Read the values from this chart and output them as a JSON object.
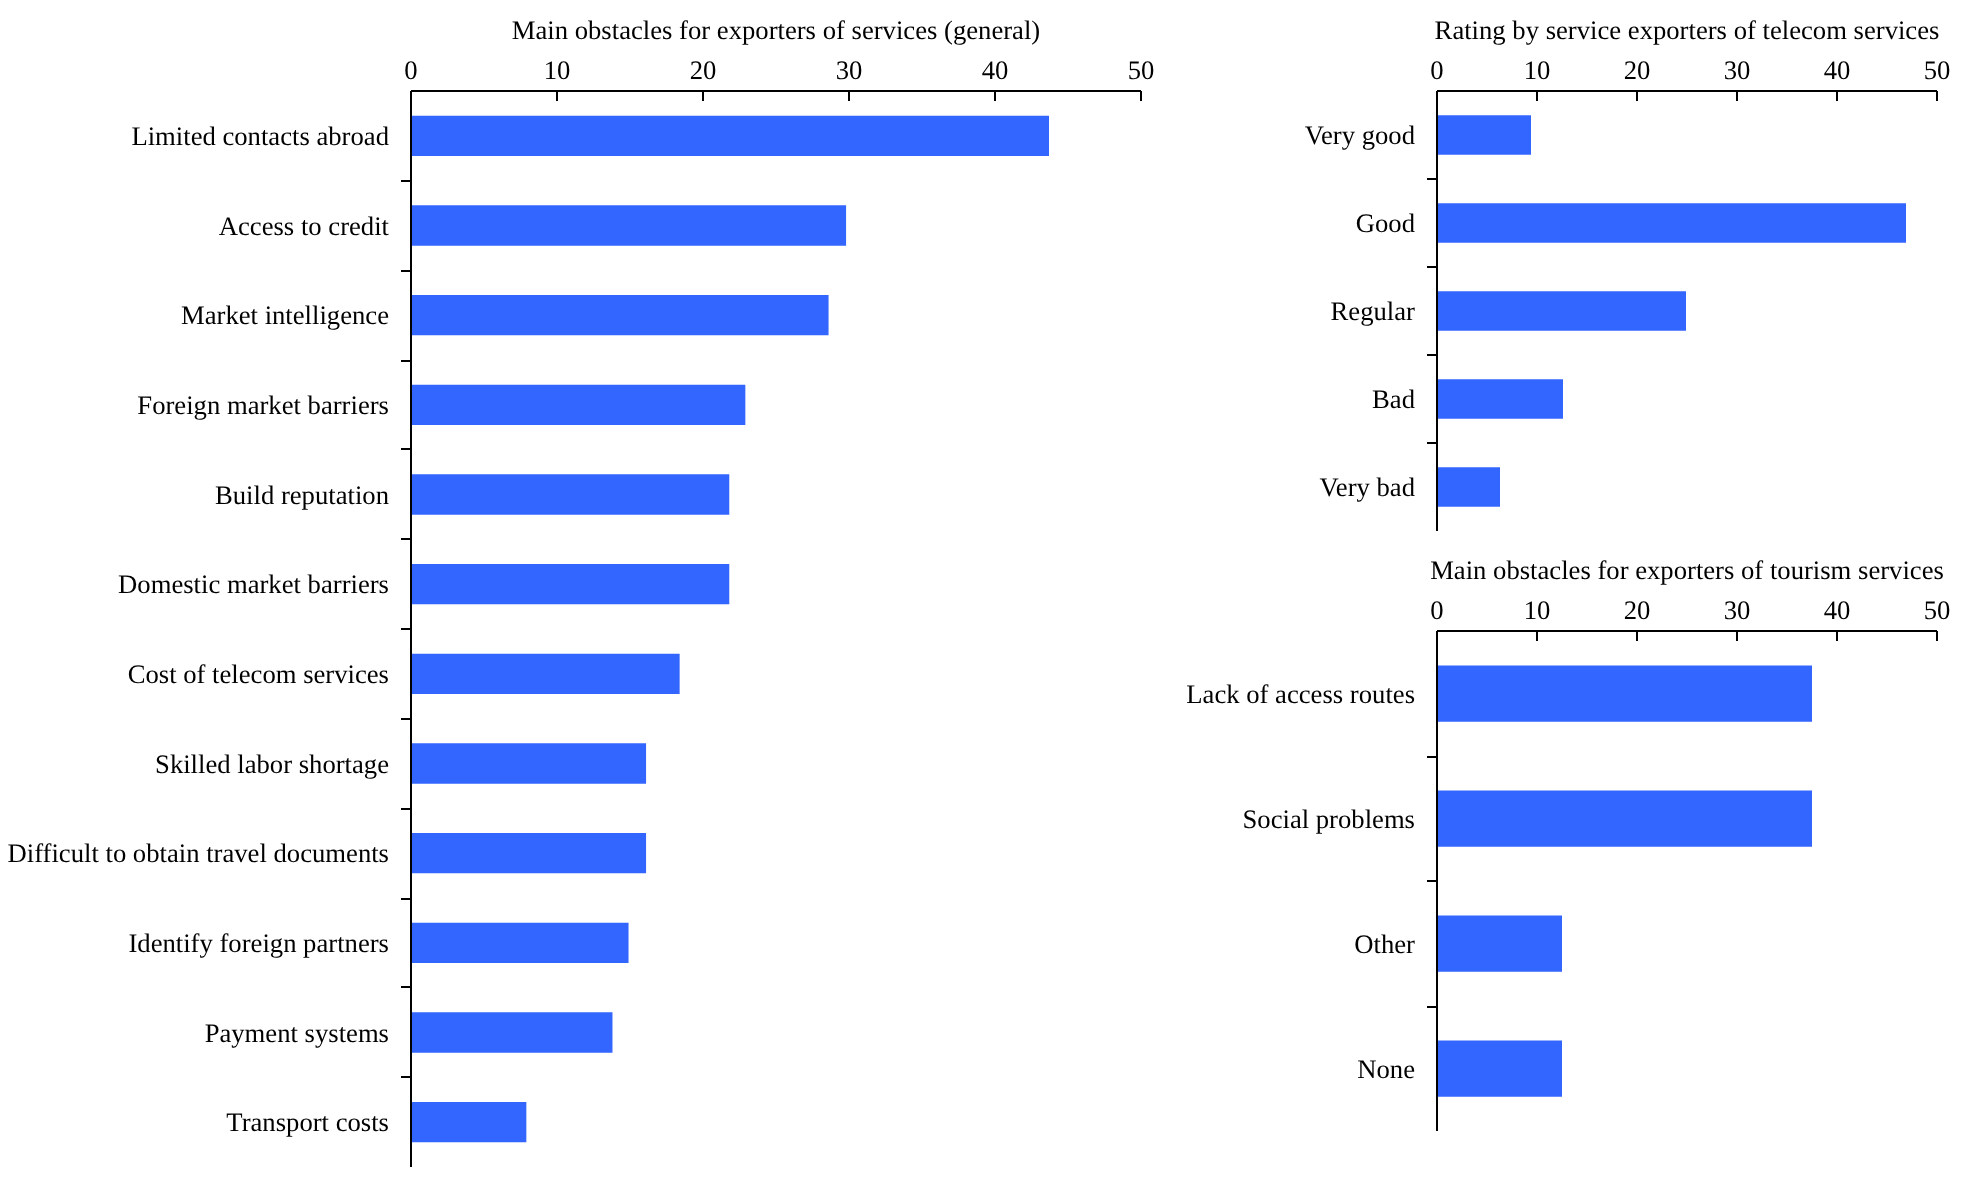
{
  "chart_data": [
    {
      "type": "bar",
      "orientation": "horizontal",
      "title": "Main obstacles for exporters of services (general)",
      "categories": [
        "Limited contacts abroad",
        "Access to credit",
        "Market intelligence",
        "Foreign market barriers",
        "Build reputation",
        "Domestic market barriers",
        "Cost of telecom services",
        "Skilled labor shortage",
        "Difficult to obtain travel documents",
        "Identify foreign partners",
        "Payment systems",
        "Transport costs"
      ],
      "values": [
        43.7,
        29.8,
        28.6,
        22.9,
        21.8,
        21.8,
        18.4,
        16.1,
        16.1,
        14.9,
        13.8,
        7.9
      ],
      "color": "#3366ff",
      "xlim": [
        0,
        50
      ],
      "xticks": [
        0,
        10,
        20,
        30,
        40,
        50
      ],
      "grid": false
    },
    {
      "type": "bar",
      "orientation": "horizontal",
      "title": "Rating by service exporters of telecom services",
      "categories": [
        "Very good",
        "Good",
        "Regular",
        "Bad",
        "Very bad"
      ],
      "values": [
        9.4,
        46.9,
        24.9,
        12.6,
        6.3
      ],
      "color": "#3366ff",
      "xlim": [
        0,
        50
      ],
      "xticks": [
        0,
        10,
        20,
        30,
        40,
        50
      ],
      "grid": false
    },
    {
      "type": "bar",
      "orientation": "horizontal",
      "title": "Main obstacles for exporters of tourism services",
      "categories": [
        "Lack of access routes",
        "Social problems",
        "Other",
        "None"
      ],
      "values": [
        37.5,
        37.5,
        12.5,
        12.5
      ],
      "color": "#3366ff",
      "xlim": [
        0,
        50
      ],
      "xticks": [
        0,
        10,
        20,
        30,
        40,
        50
      ],
      "grid": false
    }
  ]
}
